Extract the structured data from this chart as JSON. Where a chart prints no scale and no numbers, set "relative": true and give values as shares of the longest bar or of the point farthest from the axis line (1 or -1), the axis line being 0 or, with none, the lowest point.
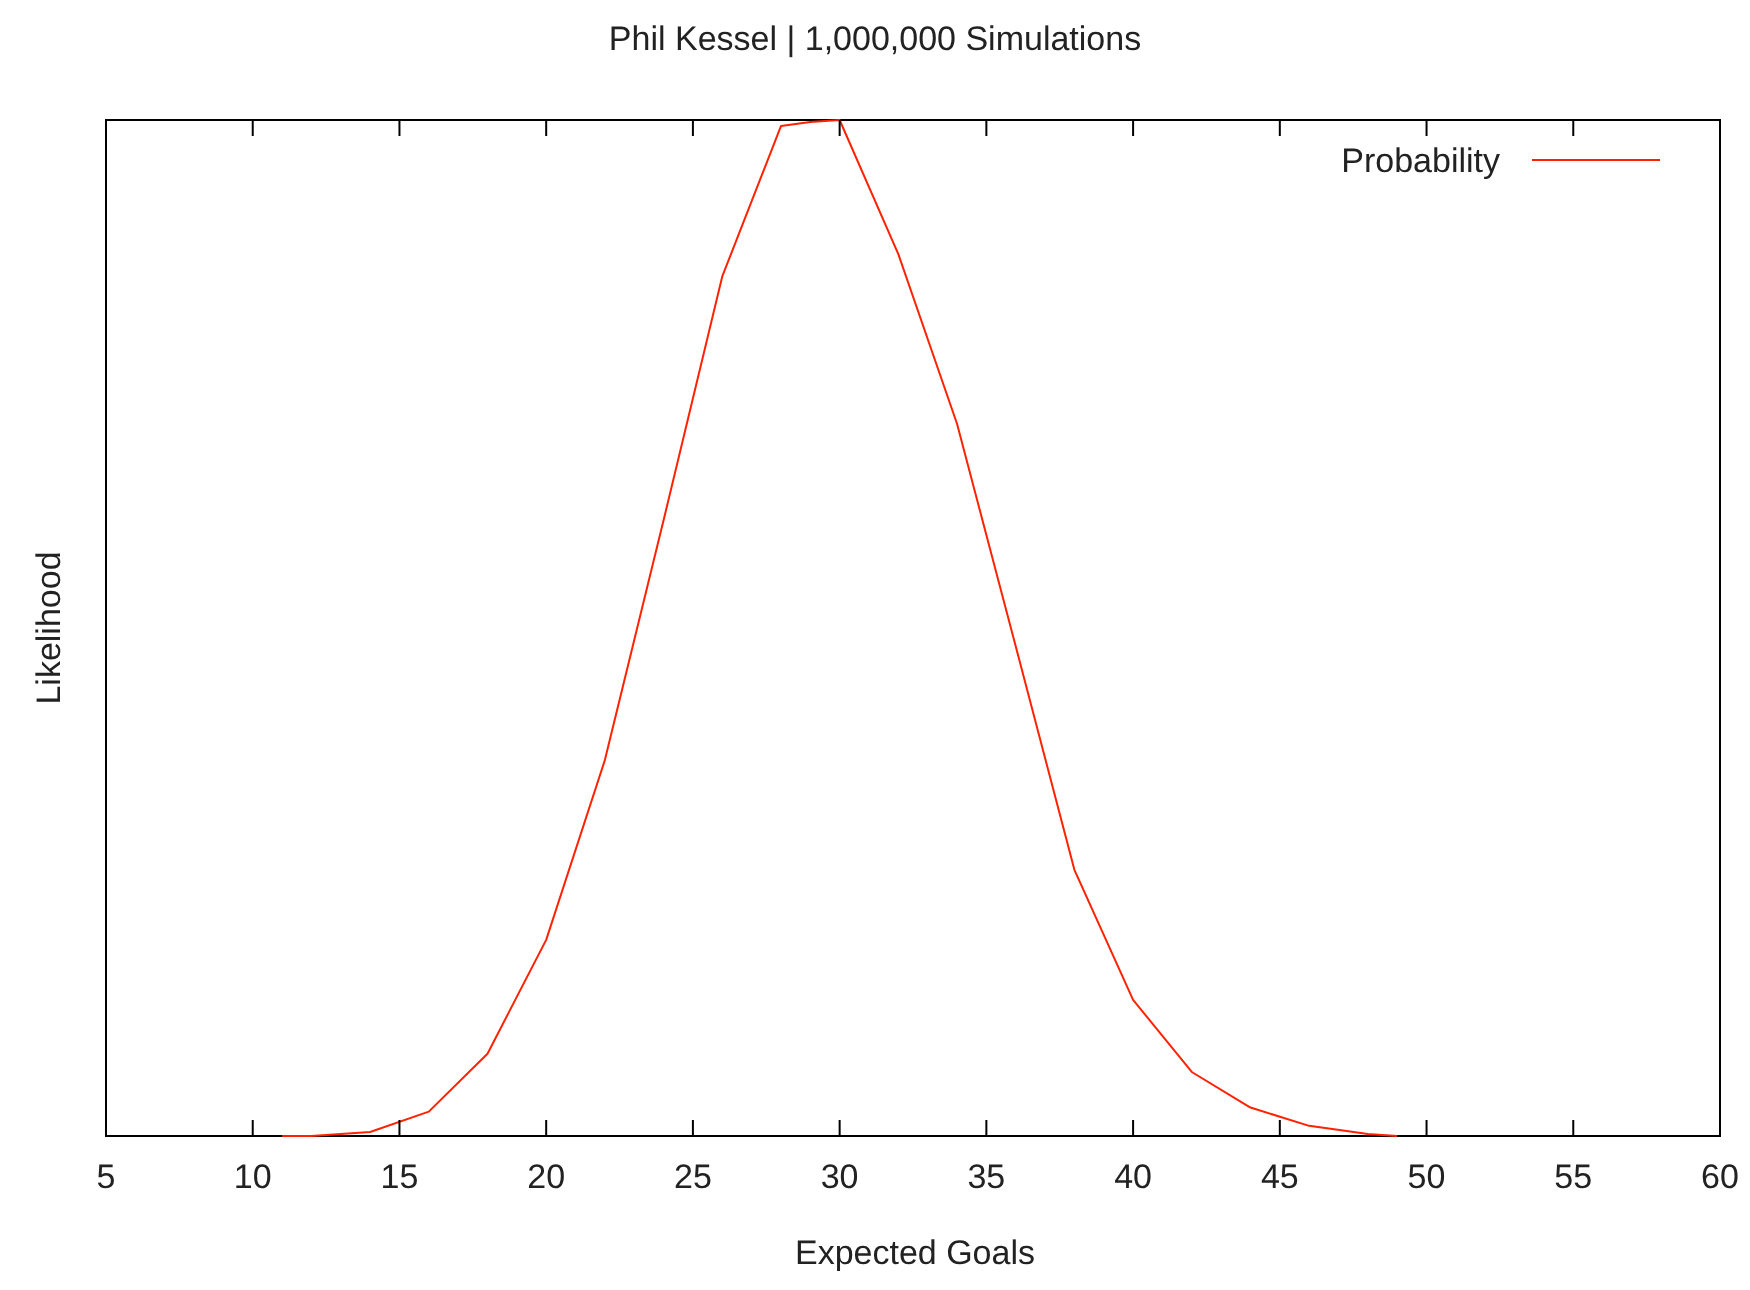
{
  "chart_data": {
    "type": "line",
    "title": "Phil Kessel | 1,000,000 Simulations",
    "xlabel": "Expected Goals",
    "ylabel": "Likelihood",
    "relative": true,
    "x": [
      11,
      12,
      14,
      16,
      18,
      20,
      22,
      24,
      26,
      28,
      29,
      30,
      32,
      34,
      36,
      38,
      40,
      42,
      44,
      46,
      48,
      49
    ],
    "series": [
      {
        "name": "Probability",
        "color": "#ff2200",
        "values": [
          0,
          0,
          0.004,
          0.024,
          0.081,
          0.193,
          0.37,
          0.606,
          0.846,
          0.994,
          0.998,
          1,
          0.868,
          0.701,
          0.482,
          0.262,
          0.134,
          0.063,
          0.028,
          0.01,
          0.002,
          0
        ]
      }
    ],
    "xlim": [
      5,
      60
    ],
    "xticks": [
      5,
      10,
      15,
      20,
      25,
      30,
      35,
      40,
      45,
      50,
      55,
      60
    ],
    "legend": "top right",
    "grid": false
  }
}
